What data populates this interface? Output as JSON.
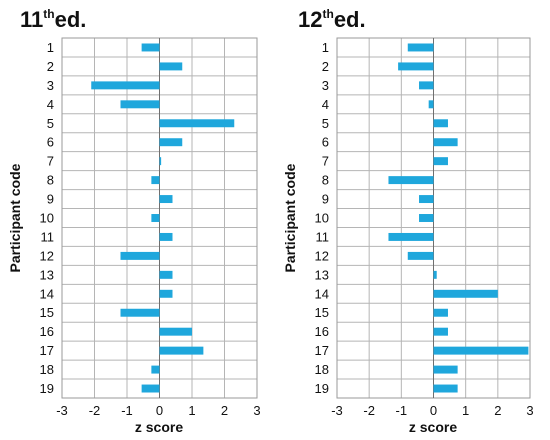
{
  "chart_data": [
    {
      "type": "bar",
      "orientation": "horizontal",
      "title": {
        "main": "11",
        "sup": "th",
        "rest": "ed."
      },
      "ylabel": "Participant code",
      "xlabel": "z score",
      "xlim": [
        -3,
        3
      ],
      "xticks": [
        "-3",
        "-2",
        "-1",
        "0",
        "1",
        "2",
        "3"
      ],
      "grid": true,
      "bar_color": "#1fa7dc",
      "categories": [
        "1",
        "2",
        "3",
        "4",
        "5",
        "6",
        "7",
        "8",
        "9",
        "10",
        "11",
        "12",
        "13",
        "14",
        "15",
        "16",
        "17",
        "18",
        "19"
      ],
      "values": [
        -0.55,
        0.7,
        -2.1,
        -1.2,
        2.3,
        0.7,
        0.05,
        -0.25,
        0.4,
        -0.25,
        0.4,
        -1.2,
        0.4,
        0.4,
        -1.2,
        1.0,
        1.35,
        -0.25,
        -0.55
      ]
    },
    {
      "type": "bar",
      "orientation": "horizontal",
      "title": {
        "main": "12",
        "sup": "th",
        "rest": "ed."
      },
      "ylabel": "Participant code",
      "xlabel": "z score",
      "xlim": [
        -3,
        3
      ],
      "xticks": [
        "-3",
        "-2",
        "-1",
        "0",
        "1",
        "2",
        "3"
      ],
      "grid": true,
      "bar_color": "#1fa7dc",
      "categories": [
        "1",
        "2",
        "3",
        "4",
        "5",
        "6",
        "7",
        "8",
        "9",
        "10",
        "11",
        "12",
        "13",
        "14",
        "15",
        "16",
        "17",
        "18",
        "19"
      ],
      "values": [
        -0.8,
        -1.1,
        -0.45,
        -0.15,
        0.45,
        0.75,
        0.45,
        -1.4,
        -0.45,
        -0.45,
        -1.4,
        -0.8,
        0.1,
        2.0,
        0.45,
        0.45,
        2.95,
        0.75,
        0.75
      ]
    }
  ]
}
